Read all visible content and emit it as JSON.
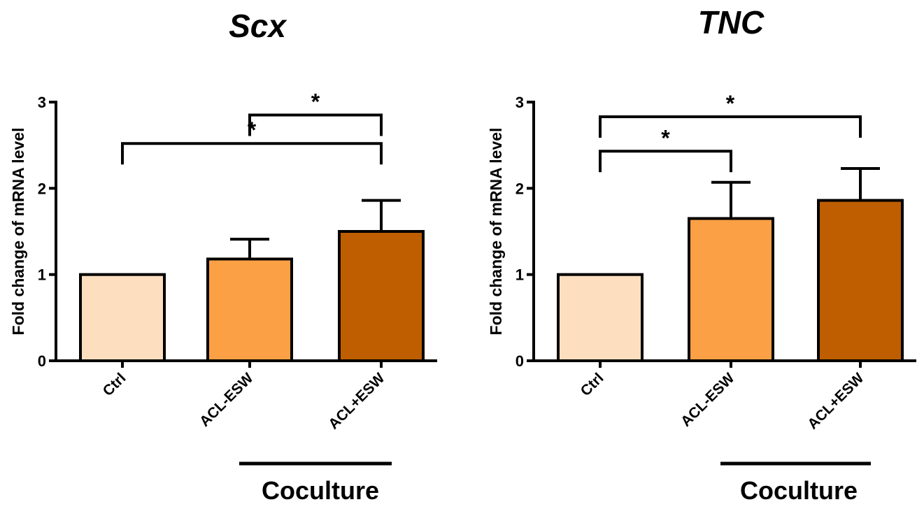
{
  "chart_data": [
    {
      "type": "bar",
      "title": "Scx",
      "ylabel": "Fold change of mRNA level",
      "categories": [
        "Ctrl",
        "ACL-ESW",
        "ACL+ESW"
      ],
      "values": [
        1.0,
        1.18,
        1.5
      ],
      "errors": [
        0,
        0.23,
        0.36
      ],
      "ylim": [
        0,
        3
      ],
      "yticks": [
        "0",
        "1",
        "2",
        "3"
      ],
      "colors": [
        "#FDDFC0",
        "#FBA045",
        "#BE5E00"
      ],
      "significance": [
        {
          "from": 1,
          "to": 2,
          "label": "*",
          "y": 2.85
        },
        {
          "from": 0,
          "to": 2,
          "label": "*",
          "y": 2.52
        }
      ],
      "group_label": {
        "text": "Coculture",
        "from": 1,
        "to": 2
      }
    },
    {
      "type": "bar",
      "title": "TNC",
      "ylabel": "Fold change of mRNA level",
      "categories": [
        "Ctrl",
        "ACL-ESW",
        "ACL+ESW"
      ],
      "values": [
        1.0,
        1.65,
        1.86
      ],
      "errors": [
        0,
        0.42,
        0.37
      ],
      "ylim": [
        0,
        3
      ],
      "yticks": [
        "0",
        "1",
        "2",
        "3"
      ],
      "colors": [
        "#FDDFC0",
        "#FBA045",
        "#BE5E00"
      ],
      "significance": [
        {
          "from": 0,
          "to": 2,
          "label": "*",
          "y": 2.83
        },
        {
          "from": 0,
          "to": 1,
          "label": "*",
          "y": 2.43
        }
      ],
      "group_label": {
        "text": "Coculture",
        "from": 1,
        "to": 2
      }
    }
  ]
}
